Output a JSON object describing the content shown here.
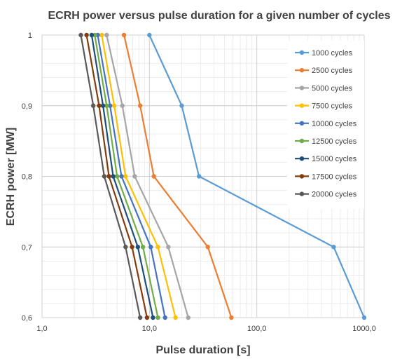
{
  "chart_data": {
    "type": "line",
    "title": "ECRH power versus pulse duration for a given number of cycles",
    "xlabel": "Pulse duration [s]",
    "ylabel": "ECRH power [MW]",
    "x_scale": "log",
    "xlim": [
      1,
      1000
    ],
    "ylim": [
      0.6,
      1.0
    ],
    "x_ticks": [
      "1,0",
      "10,0",
      "100,0",
      "1000,0"
    ],
    "y_ticks": [
      "0,6",
      "0,7",
      "0,8",
      "0,9",
      "1"
    ],
    "grid": true,
    "legend_position": "right",
    "series": [
      {
        "name": "1000 cycles",
        "color": "#5b9bd5",
        "points": [
          [
            10.0,
            1.0
          ],
          [
            20.0,
            0.9
          ],
          [
            29.0,
            0.8
          ],
          [
            520.0,
            0.7
          ],
          [
            1000.0,
            0.6
          ]
        ]
      },
      {
        "name": "2500 cycles",
        "color": "#ed7d31",
        "points": [
          [
            5.8,
            1.0
          ],
          [
            8.2,
            0.9
          ],
          [
            11.0,
            0.8
          ],
          [
            35.0,
            0.7
          ],
          [
            58.0,
            0.6
          ]
        ]
      },
      {
        "name": "5000 cycles",
        "color": "#a5a5a5",
        "points": [
          [
            4.0,
            1.0
          ],
          [
            5.6,
            0.9
          ],
          [
            7.3,
            0.8
          ],
          [
            15.0,
            0.7
          ],
          [
            23.0,
            0.6
          ]
        ]
      },
      {
        "name": "7500 cycles",
        "color": "#ffc000",
        "points": [
          [
            3.6,
            1.0
          ],
          [
            4.7,
            0.9
          ],
          [
            6.0,
            0.8
          ],
          [
            12.0,
            0.7
          ],
          [
            17.5,
            0.6
          ]
        ]
      },
      {
        "name": "10000 cycles",
        "color": "#4472c4",
        "points": [
          [
            3.3,
            1.0
          ],
          [
            4.3,
            0.9
          ],
          [
            5.5,
            0.8
          ],
          [
            10.3,
            0.7
          ],
          [
            14.0,
            0.6
          ]
        ]
      },
      {
        "name": "12500 cycles",
        "color": "#70ad47",
        "points": [
          [
            3.1,
            1.0
          ],
          [
            4.0,
            0.9
          ],
          [
            5.0,
            0.8
          ],
          [
            8.7,
            0.7
          ],
          [
            12.0,
            0.6
          ]
        ]
      },
      {
        "name": "15000 cycles",
        "color": "#1f4e79",
        "points": [
          [
            2.9,
            1.0
          ],
          [
            3.7,
            0.9
          ],
          [
            4.6,
            0.8
          ],
          [
            7.8,
            0.7
          ],
          [
            10.8,
            0.6
          ]
        ]
      },
      {
        "name": "17500 cycles",
        "color": "#843c0c",
        "points": [
          [
            2.6,
            1.0
          ],
          [
            3.4,
            0.9
          ],
          [
            4.2,
            0.8
          ],
          [
            6.9,
            0.7
          ],
          [
            9.5,
            0.6
          ]
        ]
      },
      {
        "name": "20000 cycles",
        "color": "#595959",
        "points": [
          [
            2.3,
            1.0
          ],
          [
            3.0,
            0.9
          ],
          [
            3.8,
            0.8
          ],
          [
            6.0,
            0.7
          ],
          [
            8.2,
            0.6
          ]
        ]
      }
    ]
  }
}
